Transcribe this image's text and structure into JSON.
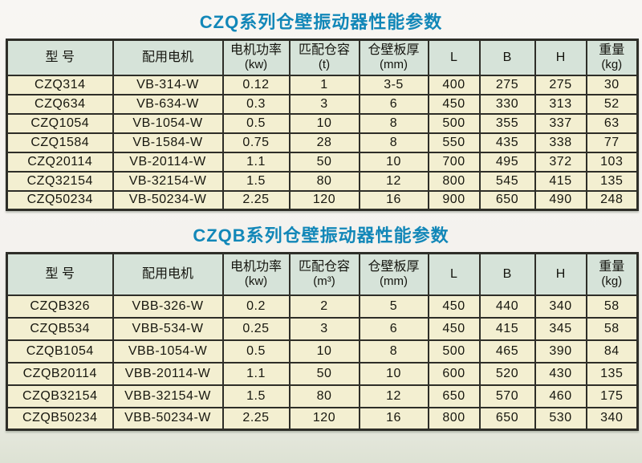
{
  "colors": {
    "title_blue": "#1287b8",
    "header_green": "#d6e3d9",
    "cell_cream": "#f3efd1",
    "border_dark": "#2e2e28",
    "page_background": "#f4f2ee"
  },
  "tables": [
    {
      "title": "CZQ系列仓壁振动器性能参数",
      "headers": [
        {
          "label": "型 号",
          "unit": ""
        },
        {
          "label": "配用电机",
          "unit": ""
        },
        {
          "label": "电机功率",
          "unit": "(kw)"
        },
        {
          "label": "匹配仓容",
          "unit": "(t)"
        },
        {
          "label": "仓壁板厚",
          "unit": "(mm)"
        },
        {
          "label": "L",
          "unit": ""
        },
        {
          "label": "B",
          "unit": ""
        },
        {
          "label": "H",
          "unit": ""
        },
        {
          "label": "重量",
          "unit": "(kg)"
        }
      ],
      "rows": [
        [
          "CZQ314",
          "VB-314-W",
          "0.12",
          "1",
          "3-5",
          "400",
          "275",
          "275",
          "30"
        ],
        [
          "CZQ634",
          "VB-634-W",
          "0.3",
          "3",
          "6",
          "450",
          "330",
          "313",
          "52"
        ],
        [
          "CZQ1054",
          "VB-1054-W",
          "0.5",
          "10",
          "8",
          "500",
          "355",
          "337",
          "63"
        ],
        [
          "CZQ1584",
          "VB-1584-W",
          "0.75",
          "28",
          "8",
          "550",
          "435",
          "338",
          "77"
        ],
        [
          "CZQ20114",
          "VB-20114-W",
          "1.1",
          "50",
          "10",
          "700",
          "495",
          "372",
          "103"
        ],
        [
          "CZQ32154",
          "VB-32154-W",
          "1.5",
          "80",
          "12",
          "800",
          "545",
          "415",
          "135"
        ],
        [
          "CZQ50234",
          "VB-50234-W",
          "2.25",
          "120",
          "16",
          "900",
          "650",
          "490",
          "248"
        ]
      ]
    },
    {
      "title": "CZQB系列仓壁振动器性能参数",
      "headers": [
        {
          "label": "型 号",
          "unit": ""
        },
        {
          "label": "配用电机",
          "unit": ""
        },
        {
          "label": "电机功率",
          "unit": "(kw)"
        },
        {
          "label": "匹配仓容",
          "unit": "(m³)"
        },
        {
          "label": "仓壁板厚",
          "unit": "(mm)"
        },
        {
          "label": "L",
          "unit": ""
        },
        {
          "label": "B",
          "unit": ""
        },
        {
          "label": "H",
          "unit": ""
        },
        {
          "label": "重量",
          "unit": "(kg)"
        }
      ],
      "rows": [
        [
          "CZQB326",
          "VBB-326-W",
          "0.2",
          "2",
          "5",
          "450",
          "440",
          "340",
          "58"
        ],
        [
          "CZQB534",
          "VBB-534-W",
          "0.25",
          "3",
          "6",
          "450",
          "415",
          "345",
          "58"
        ],
        [
          "CZQB1054",
          "VBB-1054-W",
          "0.5",
          "10",
          "8",
          "500",
          "465",
          "390",
          "84"
        ],
        [
          "CZQB20114",
          "VBB-20114-W",
          "1.1",
          "50",
          "10",
          "600",
          "520",
          "430",
          "135"
        ],
        [
          "CZQB32154",
          "VBB-32154-W",
          "1.5",
          "80",
          "12",
          "650",
          "570",
          "460",
          "175"
        ],
        [
          "CZQB50234",
          "VBB-50234-W",
          "2.25",
          "120",
          "16",
          "800",
          "650",
          "530",
          "340"
        ]
      ]
    }
  ]
}
